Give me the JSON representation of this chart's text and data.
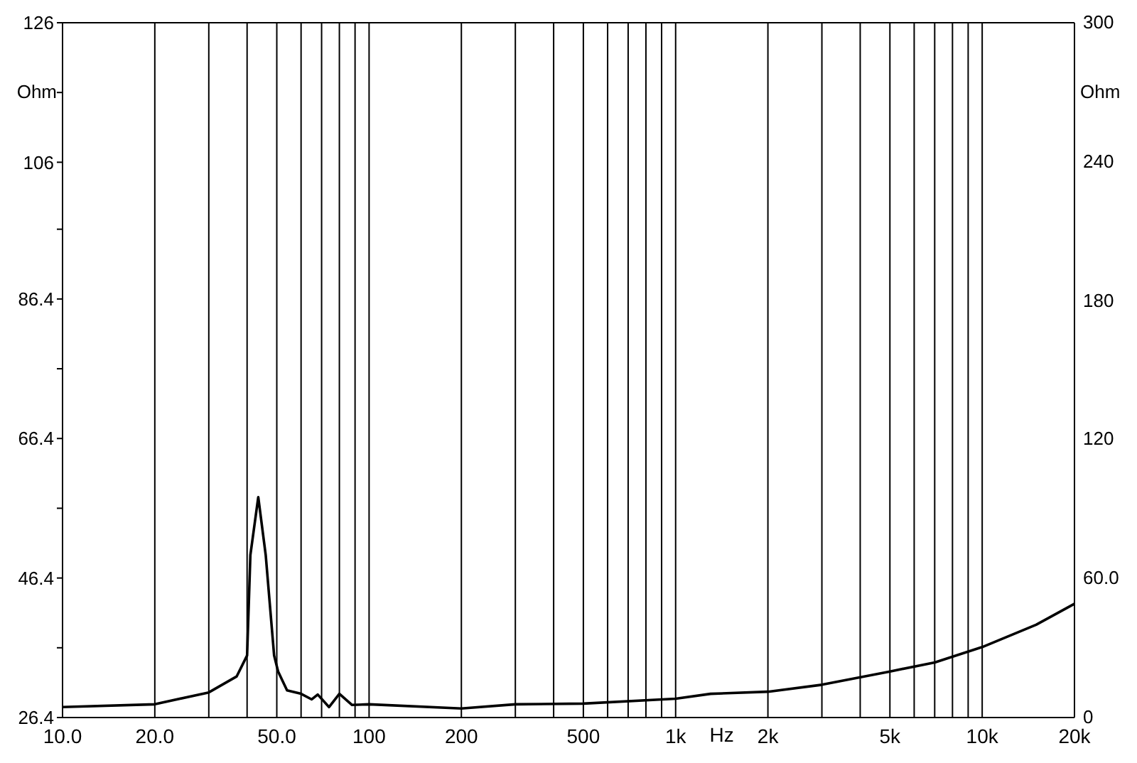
{
  "chart_data": {
    "type": "line",
    "xlabel": "Hz",
    "ylabel": "Ohm",
    "y2label": "Ohm",
    "x": [
      10,
      20,
      30,
      37,
      40,
      41,
      43.5,
      46,
      49,
      50.5,
      54,
      60,
      65,
      68,
      74,
      80,
      88,
      100,
      200,
      300,
      500,
      1000,
      1300,
      2000,
      3000,
      5000,
      7000,
      10000,
      15000,
      20000
    ],
    "series": [
      {
        "color": "#000000",
        "values": [
          27.9,
          28.3,
          30.0,
          32.3,
          35.3,
          49.7,
          58.0,
          49.7,
          35.3,
          33.0,
          30.3,
          29.8,
          29.0,
          29.7,
          27.9,
          29.8,
          28.2,
          28.3,
          27.7,
          28.3,
          28.4,
          29.1,
          29.8,
          30.1,
          31.1,
          33.0,
          34.3,
          36.5,
          39.7,
          42.7
        ]
      }
    ],
    "log": "x",
    "grid": true,
    "marker": "none",
    "line_style": "solid",
    "xlim": [
      10,
      20000
    ],
    "xticks": [
      {
        "value": 10,
        "label": "10.0"
      },
      {
        "value": 20,
        "label": "20.0"
      },
      {
        "value": 30,
        "label": null
      },
      {
        "value": 40,
        "label": null
      },
      {
        "value": 50,
        "label": "50.0"
      },
      {
        "value": 60,
        "label": null
      },
      {
        "value": 70,
        "label": null
      },
      {
        "value": 80,
        "label": null
      },
      {
        "value": 90,
        "label": null
      },
      100,
      200,
      {
        "value": 300,
        "label": null
      },
      {
        "value": 400,
        "label": null
      },
      500,
      {
        "value": 600,
        "label": null
      },
      {
        "value": 700,
        "label": null
      },
      {
        "value": 800,
        "label": null
      },
      {
        "value": 900,
        "label": null
      },
      {
        "value": 1000,
        "label": "1k"
      },
      {
        "value": 2000,
        "label": "2k"
      },
      {
        "value": 3000,
        "label": null
      },
      {
        "value": 4000,
        "label": null
      },
      {
        "value": 5000,
        "label": "5k"
      },
      {
        "value": 6000,
        "label": null
      },
      {
        "value": 7000,
        "label": null
      },
      {
        "value": 8000,
        "label": null
      },
      {
        "value": 9000,
        "label": null
      },
      {
        "value": 10000,
        "label": "10k"
      },
      {
        "value": 20000,
        "label": "20k"
      }
    ],
    "ylim": [
      26.4,
      126
    ],
    "yticks": [
      26.4,
      {
        "value": 36.4,
        "label": null
      },
      46.4,
      {
        "value": 56.4,
        "label": null
      },
      66.4,
      {
        "value": 76.4,
        "label": null
      },
      86.4,
      {
        "value": 96.4,
        "label": null
      },
      106,
      {
        "value": 116,
        "label": null
      },
      126
    ],
    "y2lim": [
      0,
      300
    ],
    "y2ticks": [
      0,
      {
        "value": 30,
        "label": null
      },
      {
        "value": 60,
        "label": "60.0"
      },
      {
        "value": 90,
        "label": null
      },
      120,
      {
        "value": 150,
        "label": null
      },
      180,
      {
        "value": 210,
        "label": null
      },
      240,
      {
        "value": 270,
        "label": null
      },
      300
    ]
  }
}
